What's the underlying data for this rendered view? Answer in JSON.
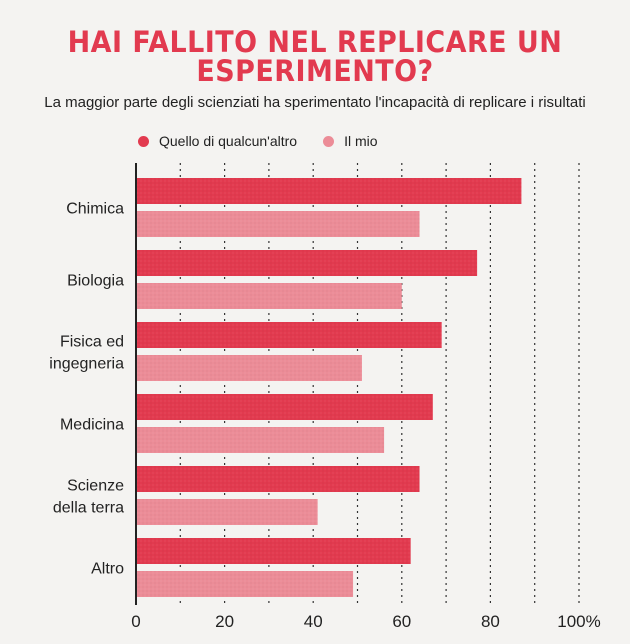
{
  "title": "HAI FALLITO NEL REPLICARE UN\nESPERIMENTO?",
  "subtitle": "La maggior parte degli scienziati ha sperimentato l'incapacità di replicare i risultati",
  "chart_data": {
    "type": "bar",
    "orientation": "horizontal",
    "categories": [
      [
        "Chimica"
      ],
      [
        "Biologia"
      ],
      [
        "Fisica ed",
        "ingegneria"
      ],
      [
        "Medicina"
      ],
      [
        "Scienze",
        "della terra"
      ],
      [
        "Altro"
      ]
    ],
    "series": [
      {
        "name": "Quello di qualcun'altro",
        "color": "#e23a4f",
        "values": [
          87,
          77,
          69,
          67,
          64,
          62
        ]
      },
      {
        "name": "Il mio",
        "color": "#ec8c97",
        "values": [
          64,
          60,
          51,
          56,
          41,
          49
        ]
      }
    ],
    "xlim": [
      0,
      100
    ],
    "ticks": [
      0,
      20,
      40,
      60,
      80,
      100
    ],
    "tick_labels": [
      "0",
      "20",
      "40",
      "60",
      "80",
      "100%"
    ],
    "grid": "dotted vertical",
    "legend": "top-left"
  }
}
